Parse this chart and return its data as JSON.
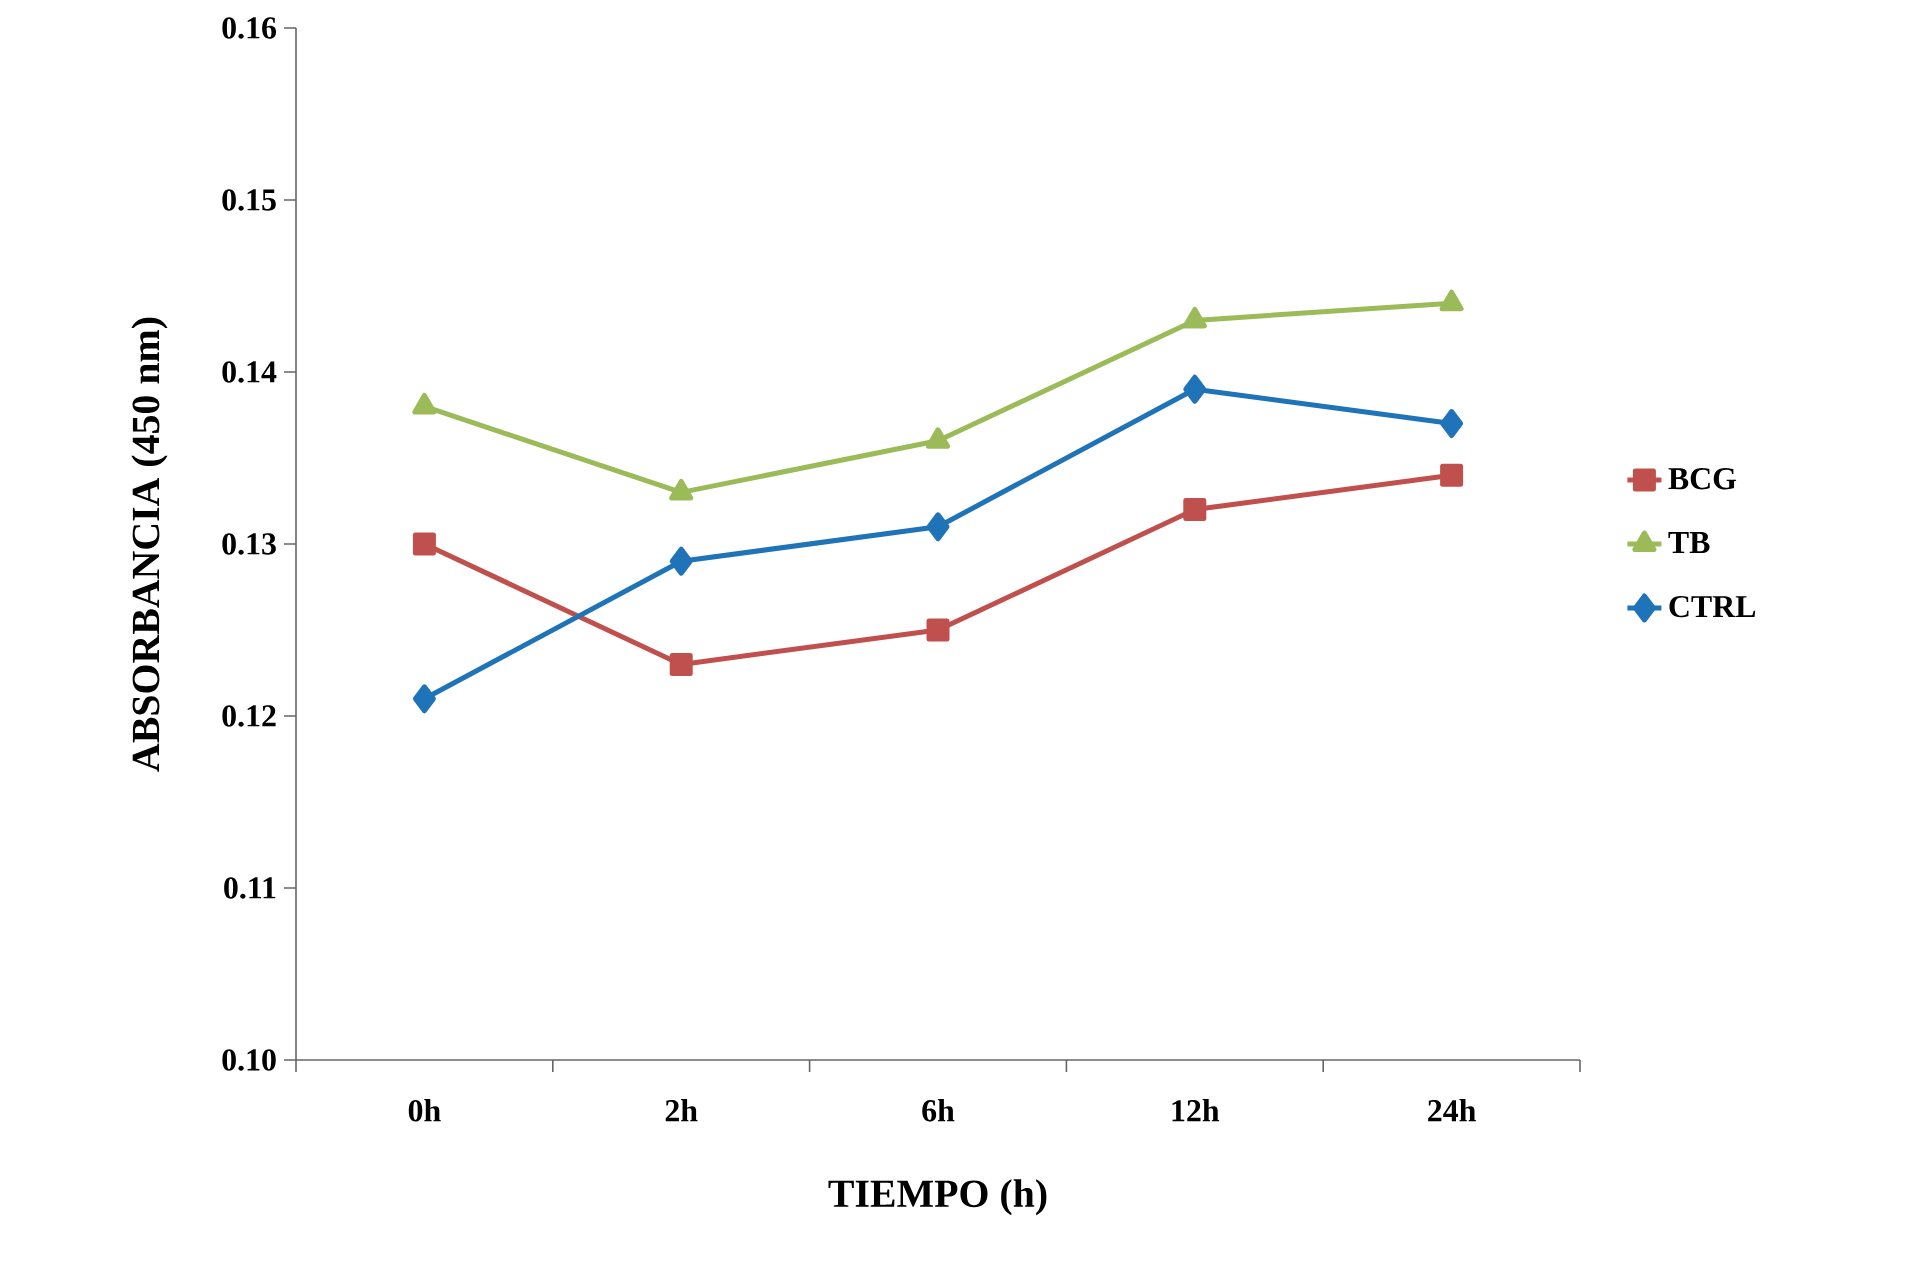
{
  "chart_data": {
    "type": "line",
    "xlabel": "TIEMPO (h)",
    "ylabel": "ABSORBANCIA (450 nm)",
    "categories": [
      "0h",
      "2h",
      "6h",
      "12h",
      "24h"
    ],
    "ylim": [
      0.1,
      0.16
    ],
    "yticks": [
      {
        "value": 0.1,
        "label": "0.10"
      },
      0.11,
      0.12,
      0.13,
      0.14,
      0.15,
      0.16
    ],
    "grid": false,
    "legend": "right",
    "line_style": "solid",
    "series": [
      {
        "name": "BCG",
        "color": "#c0504d",
        "marker": "square",
        "values": [
          0.13,
          0.123,
          0.125,
          0.132,
          0.134
        ]
      },
      {
        "name": "TB",
        "color": "#9bbb59",
        "marker": "triangle",
        "values": [
          0.138,
          0.133,
          0.136,
          0.143,
          0.144
        ]
      },
      {
        "name": "CTRL",
        "color": "#1f73b8",
        "marker": "diamond",
        "values": [
          0.121,
          0.129,
          0.131,
          0.139,
          0.137
        ]
      }
    ]
  }
}
